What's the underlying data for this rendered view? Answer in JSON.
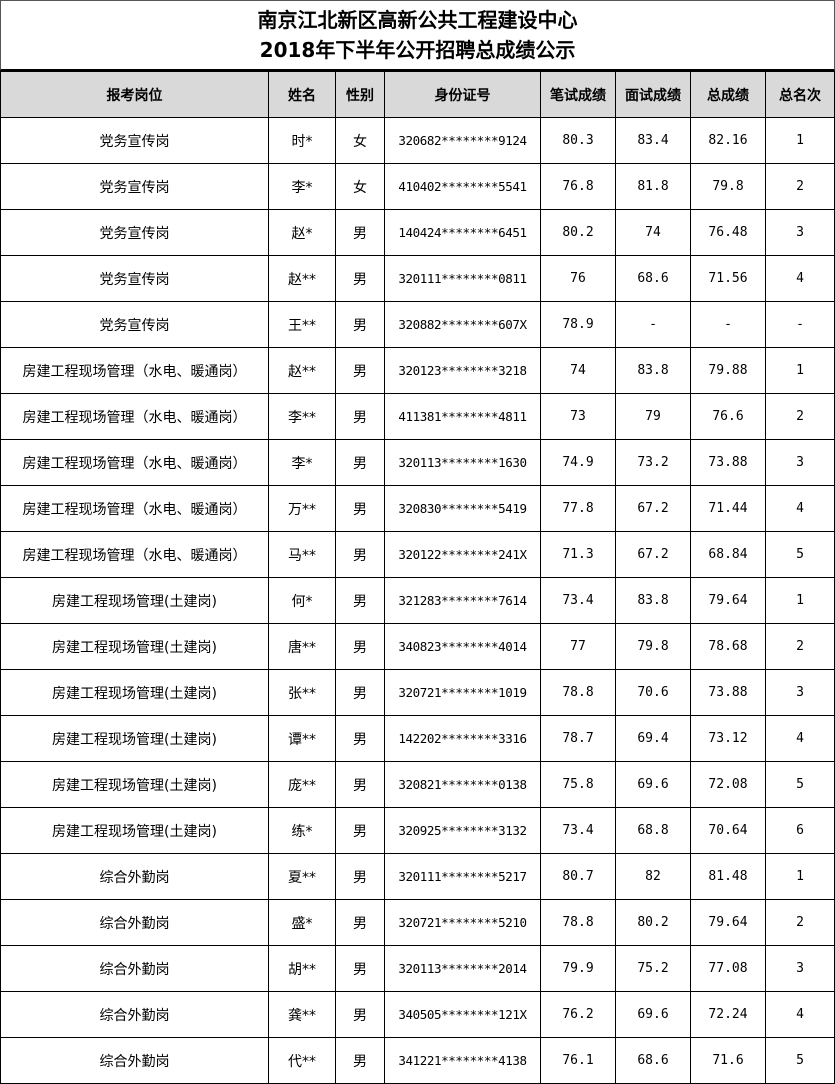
{
  "title": {
    "line1": "南京江北新区高新公共工程建设中心",
    "line2": "2018年下半年公开招聘总成绩公示"
  },
  "columns": [
    "报考岗位",
    "姓名",
    "性别",
    "身份证号",
    "笔试成绩",
    "面试成绩",
    "总成绩",
    "总名次"
  ],
  "rows": [
    [
      "党务宣传岗",
      "时*",
      "女",
      "320682********9124",
      "80.3",
      "83.4",
      "82.16",
      "1"
    ],
    [
      "党务宣传岗",
      "李*",
      "女",
      "410402********5541",
      "76.8",
      "81.8",
      "79.8",
      "2"
    ],
    [
      "党务宣传岗",
      "赵*",
      "男",
      "140424********6451",
      "80.2",
      "74",
      "76.48",
      "3"
    ],
    [
      "党务宣传岗",
      "赵**",
      "男",
      "320111********0811",
      "76",
      "68.6",
      "71.56",
      "4"
    ],
    [
      "党务宣传岗",
      "王**",
      "男",
      "320882********607X",
      "78.9",
      "-",
      "-",
      "-"
    ],
    [
      "房建工程现场管理（水电、暖通岗）",
      "赵**",
      "男",
      "320123********3218",
      "74",
      "83.8",
      "79.88",
      "1"
    ],
    [
      "房建工程现场管理（水电、暖通岗）",
      "李**",
      "男",
      "411381********4811",
      "73",
      "79",
      "76.6",
      "2"
    ],
    [
      "房建工程现场管理（水电、暖通岗）",
      "李*",
      "男",
      "320113********1630",
      "74.9",
      "73.2",
      "73.88",
      "3"
    ],
    [
      "房建工程现场管理（水电、暖通岗）",
      "万**",
      "男",
      "320830********5419",
      "77.8",
      "67.2",
      "71.44",
      "4"
    ],
    [
      "房建工程现场管理（水电、暖通岗）",
      "马**",
      "男",
      "320122********241X",
      "71.3",
      "67.2",
      "68.84",
      "5"
    ],
    [
      "房建工程现场管理(土建岗)",
      "何*",
      "男",
      "321283********7614",
      "73.4",
      "83.8",
      "79.64",
      "1"
    ],
    [
      "房建工程现场管理(土建岗)",
      "唐**",
      "男",
      "340823********4014",
      "77",
      "79.8",
      "78.68",
      "2"
    ],
    [
      "房建工程现场管理(土建岗)",
      "张**",
      "男",
      "320721********1019",
      "78.8",
      "70.6",
      "73.88",
      "3"
    ],
    [
      "房建工程现场管理(土建岗)",
      "谭**",
      "男",
      "142202********3316",
      "78.7",
      "69.4",
      "73.12",
      "4"
    ],
    [
      "房建工程现场管理(土建岗)",
      "庞**",
      "男",
      "320821********0138",
      "75.8",
      "69.6",
      "72.08",
      "5"
    ],
    [
      "房建工程现场管理(土建岗)",
      "练*",
      "男",
      "320925********3132",
      "73.4",
      "68.8",
      "70.64",
      "6"
    ],
    [
      "综合外勤岗",
      "夏**",
      "男",
      "320111********5217",
      "80.7",
      "82",
      "81.48",
      "1"
    ],
    [
      "综合外勤岗",
      "盛*",
      "男",
      "320721********5210",
      "78.8",
      "80.2",
      "79.64",
      "2"
    ],
    [
      "综合外勤岗",
      "胡**",
      "男",
      "320113********2014",
      "79.9",
      "75.2",
      "77.08",
      "3"
    ],
    [
      "综合外勤岗",
      "龚**",
      "男",
      "340505********121X",
      "76.2",
      "69.6",
      "72.24",
      "4"
    ],
    [
      "综合外勤岗",
      "代**",
      "男",
      "341221********4138",
      "76.1",
      "68.6",
      "71.6",
      "5"
    ]
  ]
}
